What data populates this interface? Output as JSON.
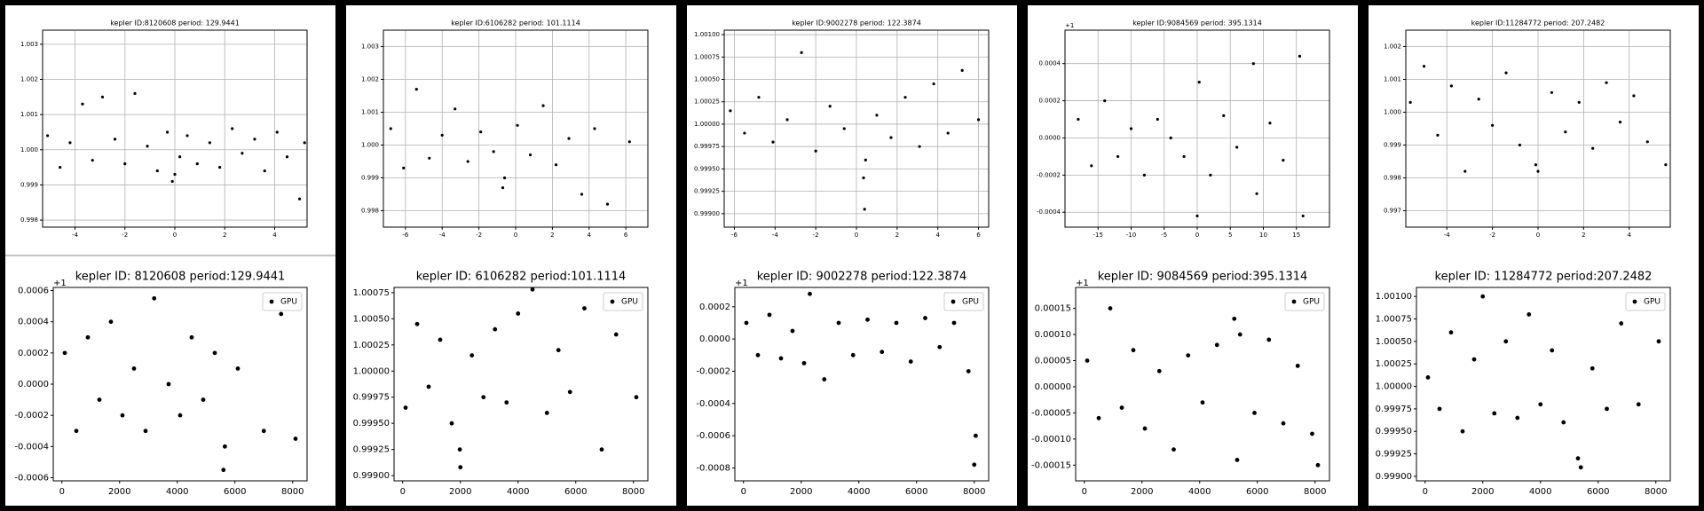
{
  "chart_data": [
    {
      "type": "scatter",
      "title": "kepler ID:8120608 period: 129.9441",
      "grid": true,
      "xlim": [
        -5.3,
        5.3
      ],
      "xticks": [
        -4,
        -2,
        0,
        2,
        4
      ],
      "ylim": [
        0.9978,
        1.0034
      ],
      "yticks": [
        0.998,
        0.999,
        {
          "value": 1.0,
          "label": "1.000"
        },
        1.001,
        1.002,
        1.003
      ],
      "x": [
        -5.1,
        -4.6,
        -4.2,
        -3.7,
        -3.3,
        -2.9,
        -2.4,
        -2.0,
        -1.6,
        -1.1,
        -0.7,
        -0.3,
        -0.1,
        0.0,
        0.2,
        0.5,
        0.9,
        1.4,
        1.8,
        2.3,
        2.7,
        3.2,
        3.6,
        4.1,
        4.5,
        5.0,
        5.2
      ],
      "series": [
        {
          "color": "#000000",
          "values": [
            1.0004,
            0.9995,
            1.0002,
            1.0013,
            0.9997,
            1.0015,
            1.0003,
            0.9996,
            1.0016,
            1.0001,
            0.9994,
            1.0005,
            0.9991,
            0.9993,
            0.9998,
            1.0004,
            0.9996,
            1.0002,
            0.9995,
            1.0006,
            0.9999,
            1.0003,
            0.9994,
            1.0005,
            0.9998,
            0.9986,
            1.0002
          ]
        }
      ]
    },
    {
      "type": "scatter",
      "title": "kepler ID:6106282 period: 101.1114",
      "grid": true,
      "xlim": [
        -7.2,
        7.2
      ],
      "xticks": [
        -6,
        -4,
        -2,
        0,
        2,
        4,
        6
      ],
      "ylim": [
        0.9975,
        1.0035
      ],
      "yticks": [
        0.998,
        0.999,
        {
          "value": 1.0,
          "label": "1.000"
        },
        1.001,
        1.002,
        1.003
      ],
      "x": [
        -6.8,
        -6.1,
        -5.4,
        -4.7,
        -4.0,
        -3.3,
        -2.6,
        -1.9,
        -1.2,
        -0.7,
        -0.6,
        0.1,
        0.8,
        1.5,
        2.2,
        2.9,
        3.6,
        4.3,
        5.0,
        6.2
      ],
      "series": [
        {
          "color": "#000000",
          "values": [
            1.0005,
            0.9993,
            1.0017,
            0.9996,
            1.0003,
            1.0011,
            0.9995,
            1.0004,
            0.9998,
            0.9987,
            0.999,
            1.0006,
            0.9997,
            1.0012,
            0.9994,
            1.0002,
            0.9985,
            1.0005,
            0.9982,
            1.0001
          ]
        }
      ]
    },
    {
      "type": "scatter",
      "title": "kepler ID:9002278 period: 122.3874",
      "grid": true,
      "xlim": [
        -6.5,
        6.5
      ],
      "xticks": [
        -6,
        -4,
        -2,
        0,
        2,
        4,
        6
      ],
      "ylim": [
        0.99885,
        1.00105
      ],
      "yticks": [
        {
          "value": 0.999,
          "label": "0.99900"
        },
        0.99925,
        {
          "value": 0.9995,
          "label": "0.99950"
        },
        0.99975,
        {
          "value": 1.0,
          "label": "1.00000"
        },
        1.00025,
        {
          "value": 1.0005,
          "label": "1.00050"
        },
        1.00075,
        {
          "value": 1.001,
          "label": "1.00100"
        }
      ],
      "x": [
        -6.2,
        -5.5,
        -4.8,
        -4.1,
        -3.4,
        -2.7,
        -2.0,
        -1.3,
        -0.6,
        0.35,
        0.4,
        0.45,
        1.0,
        1.7,
        2.4,
        3.1,
        3.8,
        4.5,
        5.2,
        6.0
      ],
      "series": [
        {
          "color": "#000000",
          "values": [
            1.00015,
            0.9999,
            1.0003,
            0.9998,
            1.00005,
            1.0008,
            0.9997,
            1.0002,
            0.99995,
            0.9994,
            0.99905,
            0.9996,
            1.0001,
            0.99985,
            1.0003,
            0.99975,
            1.00045,
            0.9999,
            1.0006,
            1.00005
          ]
        }
      ]
    },
    {
      "type": "scatter",
      "title": "kepler ID:9084569 period: 395.1314",
      "grid": true,
      "offset_label": "+1",
      "xlim": [
        -20,
        20
      ],
      "xticks": [
        -15,
        -10,
        -5,
        0,
        5,
        10,
        15
      ],
      "ylim": [
        -0.00048,
        0.00058
      ],
      "yticks": [
        -0.0004,
        -0.0002,
        {
          "value": 0,
          "label": "0.0000"
        },
        0.0002,
        0.0004
      ],
      "x": [
        -18,
        -16,
        -14,
        -12,
        -10,
        -8,
        -6,
        -4,
        -2,
        0,
        0.3,
        2,
        4,
        6,
        8.5,
        9,
        11,
        13,
        15.5,
        16
      ],
      "series": [
        {
          "color": "#000000",
          "values": [
            0.0001,
            -0.00015,
            0.0002,
            -0.0001,
            5e-05,
            -0.0002,
            0.0001,
            0.0,
            -0.0001,
            -0.00042,
            0.0003,
            -0.0002,
            0.00012,
            -5e-05,
            0.0004,
            -0.0003,
            8e-05,
            -0.00012,
            0.00044,
            -0.00042
          ]
        }
      ]
    },
    {
      "type": "scatter",
      "title": "kepler ID:11284772 period: 207.2482",
      "grid": true,
      "xlim": [
        -5.8,
        5.8
      ],
      "xticks": [
        -4,
        -2,
        0,
        2,
        4
      ],
      "ylim": [
        0.9965,
        1.0025
      ],
      "yticks": [
        0.997,
        0.998,
        0.999,
        {
          "value": 1.0,
          "label": "1.000"
        },
        1.001,
        1.002
      ],
      "x": [
        -5.6,
        -5.0,
        -4.4,
        -3.8,
        -3.2,
        -2.6,
        -2.0,
        -1.4,
        -0.8,
        -0.1,
        0.0,
        0.6,
        1.2,
        1.8,
        2.4,
        3.0,
        3.6,
        4.2,
        4.8,
        5.6
      ],
      "series": [
        {
          "color": "#000000",
          "values": [
            1.0003,
            1.0014,
            0.9993,
            1.0008,
            0.9982,
            1.0004,
            0.9996,
            1.0012,
            0.999,
            0.9984,
            0.9982,
            1.0006,
            0.9994,
            1.0003,
            0.9989,
            1.0009,
            0.9997,
            1.0005,
            0.9991,
            0.9984
          ]
        }
      ]
    },
    {
      "type": "scatter",
      "title": "kepler ID: 8120608 period:129.9441",
      "grid": false,
      "offset_label": "+1",
      "legend": "upper right",
      "xlim": [
        -300,
        8500
      ],
      "xticks": [
        0,
        2000,
        4000,
        6000,
        8000
      ],
      "ylim": [
        -0.00062,
        0.00062
      ],
      "yticks": [
        -0.0006,
        -0.0004,
        -0.0002,
        {
          "value": 0,
          "label": "0.0000"
        },
        0.0002,
        0.0004,
        0.0006
      ],
      "x": [
        100,
        500,
        900,
        1300,
        1700,
        2100,
        2500,
        2900,
        3200,
        3700,
        4100,
        4500,
        4900,
        5300,
        5600,
        5650,
        6100,
        7000,
        7600,
        8100
      ],
      "series": [
        {
          "name": "GPU",
          "color": "#000000",
          "values": [
            0.0002,
            -0.0003,
            0.0003,
            -0.0001,
            0.0004,
            -0.0002,
            0.0001,
            -0.0003,
            0.00055,
            0.0,
            -0.0002,
            0.0003,
            -0.0001,
            0.0002,
            -0.00055,
            -0.0004,
            0.0001,
            -0.0003,
            0.00045,
            -0.00035
          ]
        }
      ]
    },
    {
      "type": "scatter",
      "title": "kepler ID: 6106282 period:101.1114",
      "grid": false,
      "legend": "upper right",
      "xlim": [
        -300,
        8500
      ],
      "xticks": [
        0,
        2000,
        4000,
        6000,
        8000
      ],
      "ylim": [
        0.99895,
        1.0008
      ],
      "yticks": [
        {
          "value": 0.999,
          "label": "0.99900"
        },
        0.99925,
        {
          "value": 0.9995,
          "label": "0.99950"
        },
        0.99975,
        {
          "value": 1.0,
          "label": "1.00000"
        },
        1.00025,
        {
          "value": 1.0005,
          "label": "1.00050"
        },
        1.00075
      ],
      "x": [
        100,
        500,
        900,
        1300,
        1700,
        1980,
        2000,
        2400,
        2800,
        3200,
        3600,
        4000,
        4500,
        5000,
        5400,
        5800,
        6300,
        6900,
        7400,
        8100
      ],
      "series": [
        {
          "name": "GPU",
          "color": "#000000",
          "values": [
            0.99965,
            1.00045,
            0.99985,
            1.0003,
            0.9995,
            0.99925,
            0.99908,
            1.00015,
            0.99975,
            1.0004,
            0.9997,
            1.00055,
            1.00078,
            0.9996,
            1.0002,
            0.9998,
            1.0006,
            0.99925,
            1.00035,
            0.99975
          ]
        }
      ]
    },
    {
      "type": "scatter",
      "title": "kepler ID: 9002278 period:122.3874",
      "grid": false,
      "offset_label": "+1",
      "legend": "upper right",
      "xlim": [
        -300,
        8500
      ],
      "xticks": [
        0,
        2000,
        4000,
        6000,
        8000
      ],
      "ylim": [
        -0.00088,
        0.00032
      ],
      "yticks": [
        -0.0008,
        -0.0006,
        -0.0004,
        -0.0002,
        {
          "value": 0,
          "label": "0.0000"
        },
        0.0002
      ],
      "x": [
        100,
        500,
        900,
        1300,
        1700,
        2100,
        2300,
        2800,
        3300,
        3800,
        4300,
        4800,
        5300,
        5800,
        6300,
        6800,
        7300,
        7800,
        8000,
        8050
      ],
      "series": [
        {
          "name": "GPU",
          "color": "#000000",
          "values": [
            0.0001,
            -0.0001,
            0.00015,
            -0.00012,
            5e-05,
            -0.00015,
            0.00028,
            -0.00025,
            0.0001,
            -0.0001,
            0.00012,
            -8e-05,
            0.0001,
            -0.00014,
            0.00013,
            -5e-05,
            0.0001,
            -0.0002,
            -0.00078,
            -0.0006
          ]
        }
      ]
    },
    {
      "type": "scatter",
      "title": "kepler ID: 9084569 period:395.1314",
      "grid": false,
      "offset_label": "+1",
      "legend": "upper right",
      "xlim": [
        -300,
        8500
      ],
      "xticks": [
        0,
        2000,
        4000,
        6000,
        8000
      ],
      "ylim": [
        -0.00018,
        0.00019
      ],
      "yticks": [
        -0.00015,
        {
          "value": -0.0001,
          "label": "-0.00010"
        },
        -5e-05,
        {
          "value": 0,
          "label": "0.00000"
        },
        5e-05,
        {
          "value": 0.0001,
          "label": "0.00010"
        },
        0.00015
      ],
      "x": [
        100,
        500,
        900,
        1300,
        1700,
        2100,
        2600,
        3100,
        3600,
        4100,
        4600,
        5200,
        5300,
        5400,
        5900,
        6400,
        6900,
        7400,
        7900,
        8100
      ],
      "series": [
        {
          "name": "GPU",
          "color": "#000000",
          "values": [
            5e-05,
            -6e-05,
            0.00015,
            -4e-05,
            7e-05,
            -8e-05,
            3e-05,
            -0.00012,
            6e-05,
            -3e-05,
            8e-05,
            0.00013,
            -0.00014,
            0.0001,
            -5e-05,
            9e-05,
            -7e-05,
            4e-05,
            -9e-05,
            -0.00015
          ]
        }
      ]
    },
    {
      "type": "scatter",
      "title": "kepler ID: 11284772 period:207.2482",
      "grid": false,
      "legend": "upper right",
      "xlim": [
        -300,
        8500
      ],
      "xticks": [
        0,
        2000,
        4000,
        6000,
        8000
      ],
      "ylim": [
        0.99895,
        1.0011
      ],
      "yticks": [
        {
          "value": 0.999,
          "label": "0.99900"
        },
        0.99925,
        {
          "value": 0.9995,
          "label": "0.99950"
        },
        0.99975,
        {
          "value": 1.0,
          "label": "1.00000"
        },
        1.00025,
        {
          "value": 1.0005,
          "label": "1.00050"
        },
        1.00075,
        {
          "value": 1.001,
          "label": "1.00100"
        }
      ],
      "x": [
        100,
        500,
        900,
        1300,
        1700,
        2000,
        2400,
        2800,
        3200,
        3600,
        4000,
        4400,
        4800,
        5300,
        5400,
        5800,
        6300,
        6800,
        7400,
        8100
      ],
      "series": [
        {
          "name": "GPU",
          "color": "#000000",
          "values": [
            1.0001,
            0.99975,
            1.0006,
            0.9995,
            1.0003,
            1.001,
            0.9997,
            1.0005,
            0.99965,
            1.0008,
            0.9998,
            1.0004,
            0.9996,
            0.9992,
            0.9991,
            1.0002,
            0.99975,
            1.0007,
            0.9998,
            1.0005
          ]
        }
      ]
    }
  ]
}
